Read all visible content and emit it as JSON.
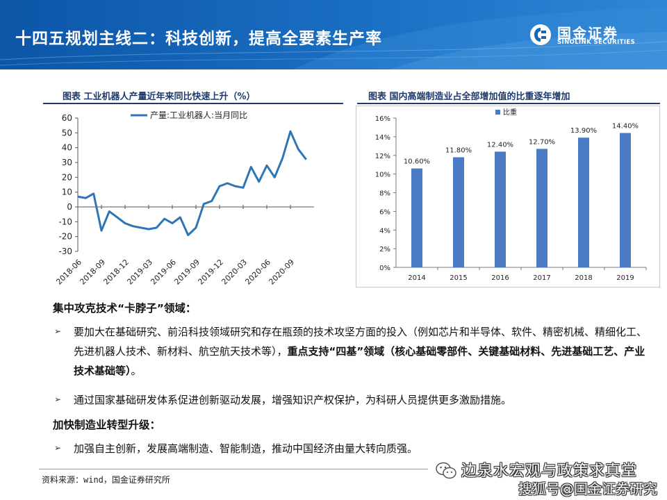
{
  "header": {
    "title": "十四五规划主线二：科技创新，提高全要素生产率",
    "brand_cn": "国金证券",
    "brand_en": "SINOLINK SECURITIES",
    "bg_color": "#1565b8"
  },
  "left_chart": {
    "title": "图表  工业机器人产量近年来同比快速上升（%）"
  },
  "right_chart": {
    "title": "图表  国内高端制造业占全部增加值的比重逐年增加"
  },
  "chart_data": [
    {
      "type": "line",
      "title": "工业机器人产量近年来同比快速上升（%）",
      "legend": "产量:工业机器人:当月同比",
      "legend_position": "top",
      "color": "#2e75b6",
      "ylim": [
        -30,
        60
      ],
      "yticks": [
        60,
        50,
        40,
        30,
        20,
        10,
        0,
        -10,
        -20,
        -30
      ],
      "xticks": [
        "2018-06",
        "2018-09",
        "2018-12",
        "2019-03",
        "2019-06",
        "2019-09",
        "2019-12",
        "2020-03",
        "2020-06",
        "2020-09"
      ],
      "x": [
        "2018-06",
        "2018-07",
        "2018-08",
        "2018-09",
        "2018-10",
        "2018-11",
        "2018-12",
        "2019-01",
        "2019-02",
        "2019-03",
        "2019-04",
        "2019-05",
        "2019-06",
        "2019-07",
        "2019-08",
        "2019-09",
        "2019-10",
        "2019-11",
        "2019-12",
        "2020-01",
        "2020-02",
        "2020-03",
        "2020-04",
        "2020-05",
        "2020-06",
        "2020-07",
        "2020-08",
        "2020-09",
        "2020-10",
        "2020-11",
        "2020-12"
      ],
      "values": [
        7,
        6,
        9,
        -16,
        -3,
        -7,
        -11,
        -13,
        -14,
        -15,
        -14,
        -8,
        -11,
        -7,
        -19,
        -14,
        2,
        4,
        14,
        16,
        14,
        13,
        27,
        17,
        28,
        20,
        33,
        51,
        39,
        32,
        null
      ],
      "grid": false
    },
    {
      "type": "bar",
      "title": "国内高端制造业占全部增加值的比重逐年增加",
      "legend": "比重",
      "legend_position": "top",
      "color": "#4a7bc4",
      "categories": [
        "2014",
        "2015",
        "2016",
        "2017",
        "2018",
        "2019"
      ],
      "values": [
        10.6,
        11.8,
        12.4,
        12.7,
        13.9,
        14.4
      ],
      "labels": [
        "10.60%",
        "11.80%",
        "12.40%",
        "12.70%",
        "13.90%",
        "14.40%"
      ],
      "ylim": [
        0,
        16
      ],
      "yticks": [
        "16%",
        "14%",
        "12%",
        "10%",
        "8%",
        "6%",
        "4%",
        "2%",
        "0%"
      ],
      "grid": false
    }
  ],
  "content": {
    "section1": "集中攻克技术“卡脖子”领域：",
    "b1_mark": "➢",
    "b1_text": "要加大在基础研究、前沿科技领域研究和存在瓶颈的技术攻坚方面的投入（例如芯片和半导体、软件、精密机械、精细化工、先进机器人技术、新材料、航空航天技术等），",
    "b1_bold": "重点支持“四基”领域（核心基础零部件、关键基础材料、先进基础工艺、产业技术基础等）",
    "b1_tail": "。",
    "b2_mark": "➢",
    "b2_text": "通过国家基础研发体系促进创新驱动发展，增强知识产权保护，为科研人员提供更多激励措施。",
    "section2": "加快制造业转型升级：",
    "b3_mark": "➢",
    "b3_text": "加强自主创新，发展高端制造、智能制造，推动中国经济由量大转向质强。"
  },
  "footer": {
    "source": "资料来源：wind，国金证券研究所",
    "watermark1": "边泉水宏观与政策求真堂",
    "watermark2": "搜狐号@国金证券研究"
  }
}
